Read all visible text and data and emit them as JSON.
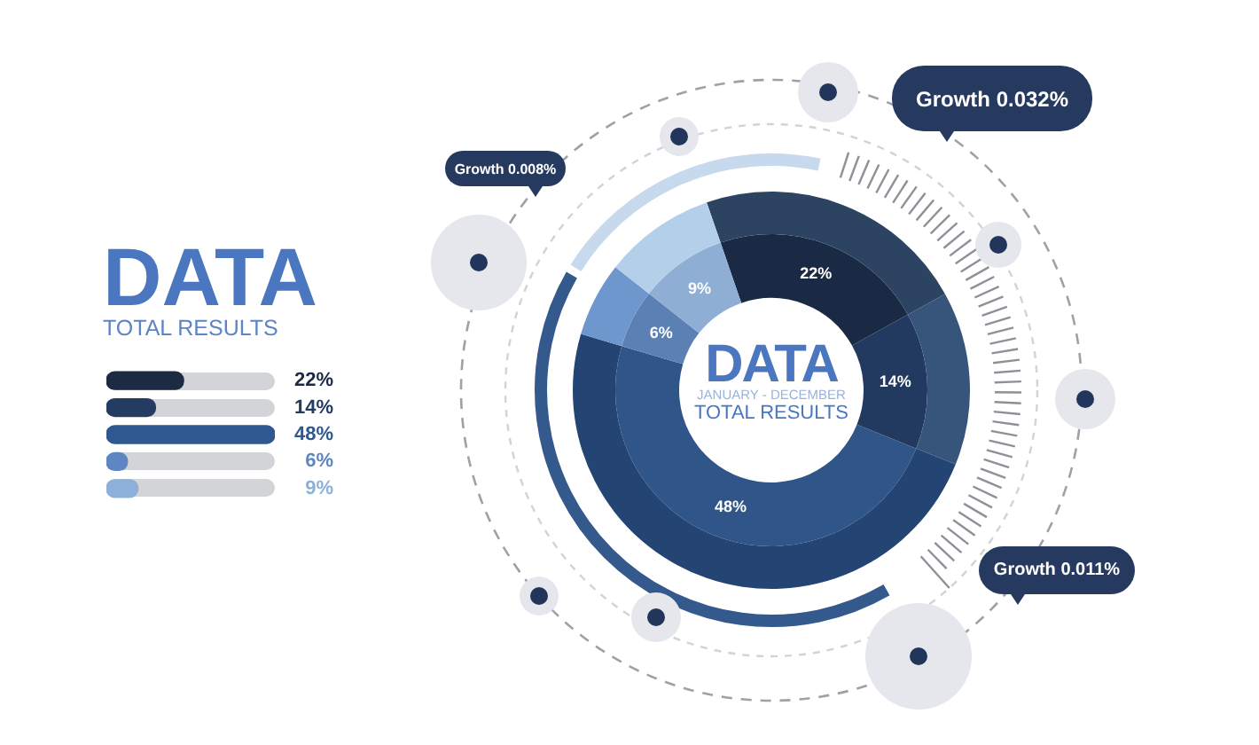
{
  "chart_data": [
    {
      "type": "bar",
      "orientation": "horizontal",
      "title": "DATA",
      "subtitle": "TOTAL RESULTS",
      "categories": [
        null,
        null,
        null,
        null,
        null
      ],
      "values": [
        22,
        14,
        48,
        6,
        9
      ],
      "colors": [
        "#1c2a44",
        "#243b62",
        "#2f5790",
        "#5d86c2",
        "#8db0da"
      ],
      "data_labels": true,
      "value_labels": [
        "22%",
        "14%",
        "48%",
        "6%",
        "9%"
      ],
      "tick_labels": false
    },
    {
      "type": "donut",
      "title": "DATA",
      "subtitle": "JANUARY - DECEMBER",
      "annotations": [
        "TOTAL RESULTS",
        "Growth 0.008%",
        "Growth 0.032%",
        "Growth 0.011%"
      ],
      "categories": [
        null,
        null,
        null,
        null,
        null
      ],
      "series": [
        {
          "values": [
            22,
            14,
            48,
            6,
            9
          ],
          "colors": [
            "#2c4462",
            "#37557a",
            "#244574",
            "#6e97cd",
            "#b4cfe9"
          ]
        },
        {
          "values": [
            22,
            14,
            48,
            6,
            9
          ],
          "colors": [
            "#1b2a44",
            "#223a60",
            "#2f5589",
            "#5b80b4",
            "#8eaed4"
          ],
          "value_labels": [
            "22%",
            "14%",
            "48%",
            "6%",
            "9%"
          ]
        }
      ]
    }
  ]
}
